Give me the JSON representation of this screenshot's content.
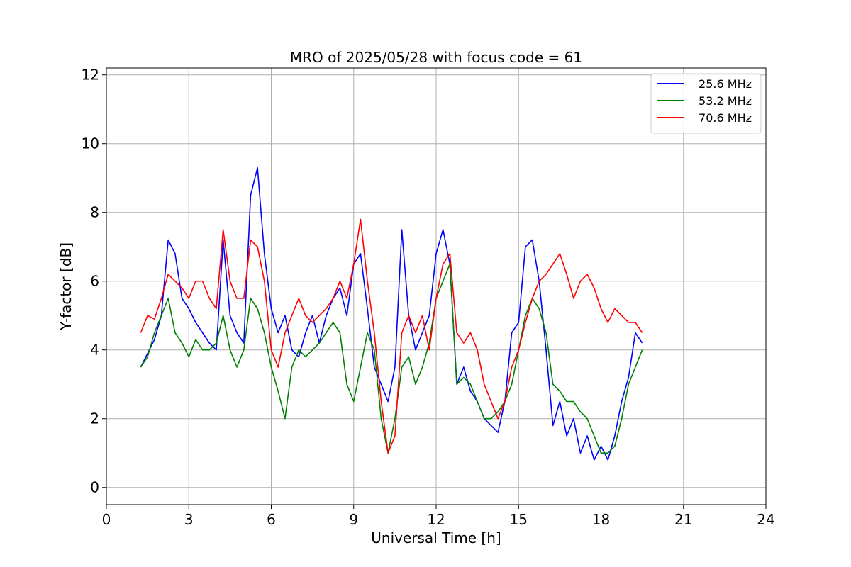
{
  "chart_data": {
    "type": "line",
    "title": "MRO of 2025/05/28 with focus code = 61",
    "xlabel": "Universal Time [h]",
    "ylabel": "Y-factor [dB]",
    "xlim": [
      0,
      24
    ],
    "ylim": [
      -0.5,
      12.2
    ],
    "xticks": [
      0,
      3,
      6,
      9,
      12,
      15,
      18,
      21,
      24
    ],
    "xtick_labels": [
      "0",
      "3",
      "6",
      "9",
      "12",
      "15",
      "18",
      "21",
      "24"
    ],
    "yticks": [
      0,
      2,
      4,
      6,
      8,
      10,
      12
    ],
    "ytick_labels": [
      "0",
      "2",
      "4",
      "6",
      "8",
      "10",
      "12"
    ],
    "grid": true,
    "legend_position": "top-right",
    "series": [
      {
        "name": "25.6 MHz",
        "color": "#0000ff",
        "x": [
          1.25,
          1.5,
          1.75,
          2.0,
          2.25,
          2.5,
          2.75,
          3.0,
          3.25,
          3.5,
          3.75,
          4.0,
          4.25,
          4.5,
          4.75,
          5.0,
          5.25,
          5.5,
          5.75,
          6.0,
          6.25,
          6.5,
          6.75,
          7.0,
          7.25,
          7.5,
          7.75,
          8.0,
          8.25,
          8.5,
          8.75,
          9.0,
          9.25,
          9.5,
          9.75,
          10.0,
          10.25,
          10.5,
          10.75,
          11.0,
          11.25,
          11.5,
          11.75,
          12.0,
          12.25,
          12.5,
          12.75,
          13.0,
          13.25,
          13.5,
          13.75,
          14.0,
          14.25,
          14.5,
          14.75,
          15.0,
          15.25,
          15.5,
          15.75,
          16.0,
          16.25,
          16.5,
          16.75,
          17.0,
          17.25,
          17.5,
          17.75,
          18.0,
          18.25,
          18.5,
          18.75,
          19.0,
          19.25,
          19.5
        ],
        "y": [
          3.5,
          3.9,
          4.3,
          5.0,
          7.2,
          6.8,
          5.5,
          5.2,
          4.8,
          4.5,
          4.2,
          4.0,
          7.2,
          5.0,
          4.5,
          4.2,
          8.5,
          9.3,
          6.8,
          5.2,
          4.5,
          5.0,
          4.0,
          3.8,
          4.5,
          5.0,
          4.2,
          5.0,
          5.5,
          5.8,
          5.0,
          6.5,
          6.8,
          5.2,
          3.5,
          3.0,
          2.5,
          3.5,
          7.5,
          5.0,
          4.0,
          4.5,
          5.0,
          6.8,
          7.5,
          6.5,
          3.0,
          3.5,
          2.8,
          2.5,
          2.0,
          1.8,
          1.6,
          2.5,
          4.5,
          4.8,
          7.0,
          7.2,
          6.0,
          4.0,
          1.8,
          2.5,
          1.5,
          2.0,
          1.0,
          1.5,
          0.8,
          1.2,
          0.8,
          1.5,
          2.5,
          3.2,
          4.5,
          4.2
        ]
      },
      {
        "name": "53.2 MHz",
        "color": "#008000",
        "x": [
          1.25,
          1.5,
          1.75,
          2.0,
          2.25,
          2.5,
          2.75,
          3.0,
          3.25,
          3.5,
          3.75,
          4.0,
          4.25,
          4.5,
          4.75,
          5.0,
          5.25,
          5.5,
          5.75,
          6.0,
          6.25,
          6.5,
          6.75,
          7.0,
          7.25,
          7.5,
          7.75,
          8.0,
          8.25,
          8.5,
          8.75,
          9.0,
          9.25,
          9.5,
          9.75,
          10.0,
          10.25,
          10.5,
          10.75,
          11.0,
          11.25,
          11.5,
          11.75,
          12.0,
          12.25,
          12.5,
          12.75,
          13.0,
          13.25,
          13.5,
          13.75,
          14.0,
          14.25,
          14.5,
          14.75,
          15.0,
          15.25,
          15.5,
          15.75,
          16.0,
          16.25,
          16.5,
          16.75,
          17.0,
          17.25,
          17.5,
          17.75,
          18.0,
          18.25,
          18.5,
          18.75,
          19.0,
          19.25,
          19.5
        ],
        "y": [
          3.5,
          3.8,
          4.5,
          5.0,
          5.5,
          4.5,
          4.2,
          3.8,
          4.3,
          4.0,
          4.0,
          4.2,
          5.0,
          4.0,
          3.5,
          4.0,
          5.5,
          5.2,
          4.5,
          3.5,
          2.8,
          2.0,
          3.5,
          4.0,
          3.8,
          4.0,
          4.2,
          4.5,
          4.8,
          4.5,
          3.0,
          2.5,
          3.5,
          4.5,
          4.0,
          2.0,
          1.0,
          2.0,
          3.5,
          3.8,
          3.0,
          3.5,
          4.2,
          5.5,
          6.0,
          6.5,
          3.0,
          3.2,
          3.0,
          2.5,
          2.0,
          2.0,
          2.2,
          2.5,
          3.0,
          4.0,
          5.0,
          5.5,
          5.2,
          4.5,
          3.0,
          2.8,
          2.5,
          2.5,
          2.2,
          2.0,
          1.5,
          1.0,
          1.0,
          1.2,
          2.0,
          3.0,
          3.5,
          4.0
        ]
      },
      {
        "name": "70.6 MHz",
        "color": "#ff0000",
        "x": [
          1.25,
          1.5,
          1.75,
          2.0,
          2.25,
          2.5,
          2.75,
          3.0,
          3.25,
          3.5,
          3.75,
          4.0,
          4.25,
          4.5,
          4.75,
          5.0,
          5.25,
          5.5,
          5.75,
          6.0,
          6.25,
          6.5,
          6.75,
          7.0,
          7.25,
          7.5,
          7.75,
          8.0,
          8.25,
          8.5,
          8.75,
          9.0,
          9.25,
          9.5,
          9.75,
          10.0,
          10.25,
          10.5,
          10.75,
          11.0,
          11.25,
          11.5,
          11.75,
          12.0,
          12.25,
          12.5,
          12.75,
          13.0,
          13.25,
          13.5,
          13.75,
          14.0,
          14.25,
          14.5,
          14.75,
          15.0,
          15.25,
          15.5,
          15.75,
          16.0,
          16.25,
          16.5,
          16.75,
          17.0,
          17.25,
          17.5,
          17.75,
          18.0,
          18.25,
          18.5,
          18.75,
          19.0,
          19.25,
          19.5
        ],
        "y": [
          4.5,
          5.0,
          4.9,
          5.5,
          6.2,
          6.0,
          5.8,
          5.5,
          6.0,
          6.0,
          5.5,
          5.2,
          7.5,
          6.0,
          5.5,
          5.5,
          7.2,
          7.0,
          6.0,
          4.0,
          3.5,
          4.5,
          5.0,
          5.5,
          5.0,
          4.8,
          5.0,
          5.2,
          5.5,
          6.0,
          5.5,
          6.5,
          7.8,
          6.0,
          4.5,
          2.5,
          1.0,
          1.5,
          4.5,
          5.0,
          4.5,
          5.0,
          4.0,
          5.5,
          6.5,
          6.8,
          4.5,
          4.2,
          4.5,
          4.0,
          3.0,
          2.5,
          2.0,
          2.5,
          3.5,
          4.0,
          4.8,
          5.5,
          6.0,
          6.2,
          6.5,
          6.8,
          6.2,
          5.5,
          6.0,
          6.2,
          5.8,
          5.2,
          4.8,
          5.2,
          5.0,
          4.8,
          4.8,
          4.5
        ]
      }
    ]
  }
}
